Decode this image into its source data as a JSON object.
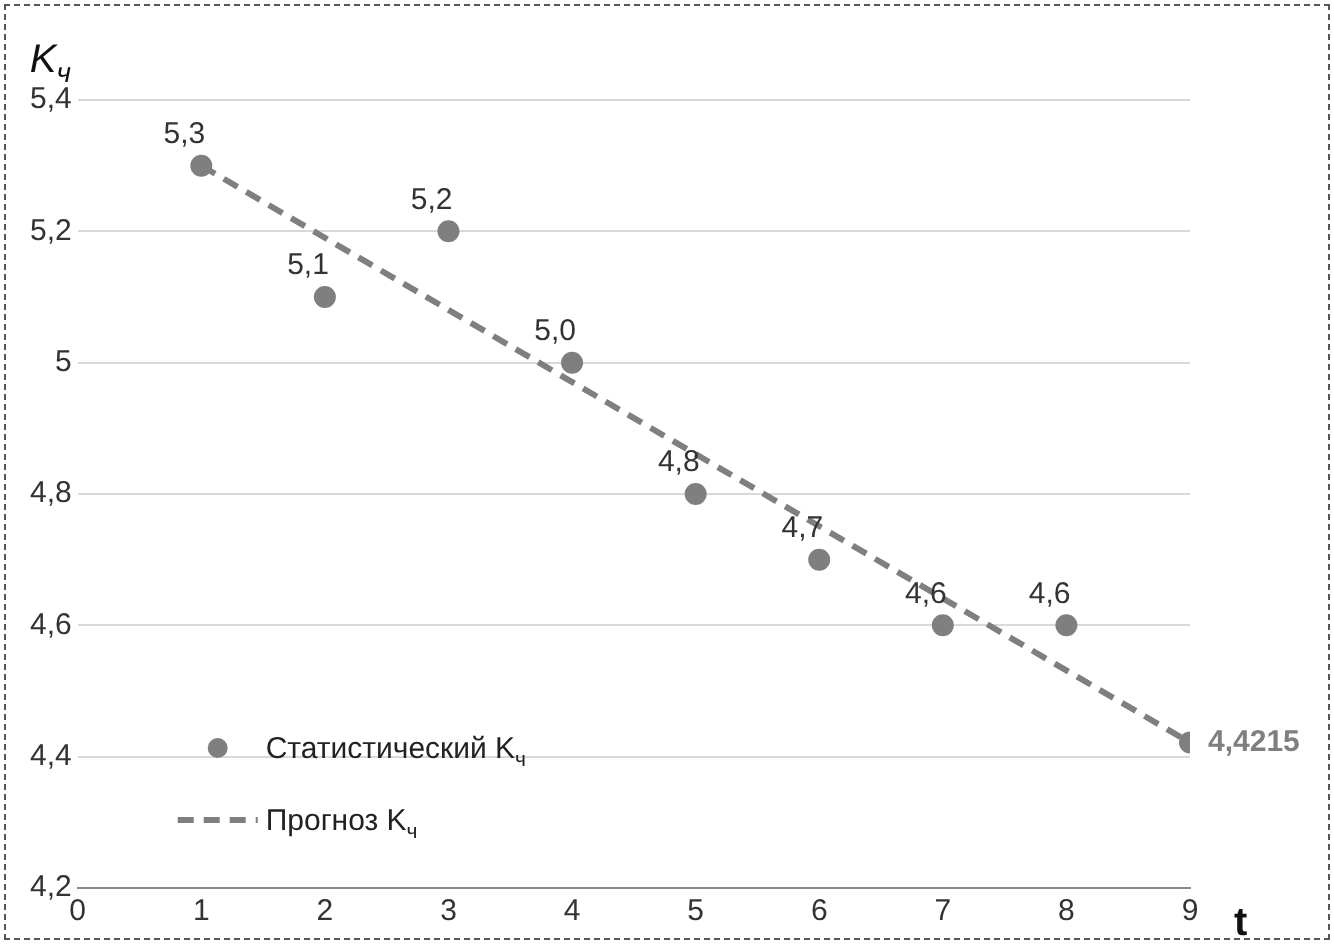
{
  "chart_data": {
    "type": "scatter",
    "xlabel": "t",
    "ylabel": "K$_{ч}$",
    "xlim": [
      0,
      9
    ],
    "xticks": [
      0,
      1,
      2,
      3,
      4,
      5,
      6,
      7,
      8,
      9
    ],
    "ylim": [
      4.2,
      5.4
    ],
    "yticks": [
      {
        "value": 4.2,
        "label": "4,2"
      },
      {
        "value": 4.4,
        "label": "4,4"
      },
      {
        "value": 4.6,
        "label": "4,6"
      },
      {
        "value": 4.8,
        "label": "4,8"
      },
      5,
      {
        "value": 5.2,
        "label": "5,2"
      },
      {
        "value": 5.4,
        "label": "5,4"
      }
    ],
    "grid": "y",
    "legend": "bottom left",
    "series": [
      {
        "name": "Статистический K$_{ч}$",
        "marker": "circle",
        "color": "#7f7f7f",
        "x": [
          1,
          2,
          3,
          4,
          5,
          6,
          7,
          8
        ],
        "values": [
          5.3,
          5.1,
          5.2,
          5.0,
          4.8,
          4.7,
          4.6,
          4.6
        ],
        "value_labels": [
          "5,3",
          "5,1",
          "5,2",
          "5,0",
          "4,8",
          "4,7",
          "4,6",
          "4,6"
        ]
      },
      {
        "name": "Прогноз K$_{ч}$",
        "type": "line",
        "marker": "none",
        "line_style": "dashed",
        "color": "#7f7f7f",
        "x": [
          1,
          9
        ],
        "values": [
          5.3,
          4.4215
        ]
      },
      {
        "marker": "circle",
        "color": "#7f7f7f",
        "x": [
          9
        ],
        "values": [
          4.4215
        ],
        "value_labels": [
          "4,4215"
        ]
      }
    ]
  }
}
